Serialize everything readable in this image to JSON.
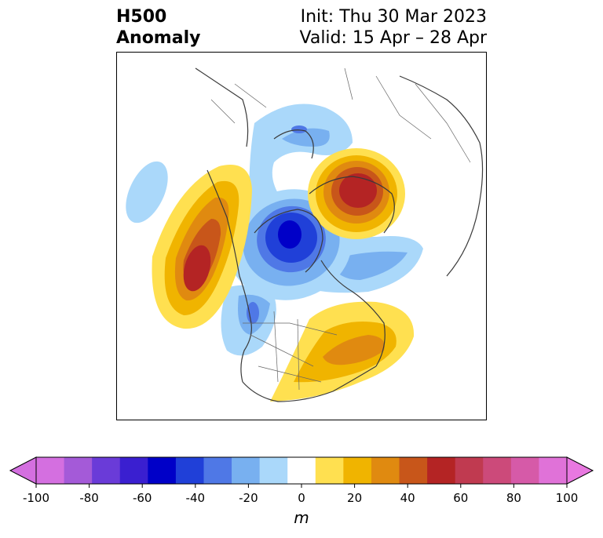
{
  "header": {
    "title_line1": "H500",
    "title_line2": "Anomaly",
    "init_text": "Init: Thu 30 Mar 2023",
    "valid_text": "Valid: 15 Apr – 28 Apr"
  },
  "colorbar": {
    "unit": "m",
    "ticks": [
      "-100",
      "-80",
      "-60",
      "-40",
      "-20",
      "0",
      "20",
      "40",
      "60",
      "80",
      "100"
    ],
    "colors": [
      "#d46fe0",
      "#a45ad8",
      "#6a3bd8",
      "#3a1fd0",
      "#0000c8",
      "#2040d8",
      "#4f78e6",
      "#78b0f0",
      "#aad8fa",
      "#ffffff",
      "#ffe050",
      "#f0b400",
      "#e08a10",
      "#c8561a",
      "#b42424",
      "#c03a50",
      "#cc4a7a",
      "#d65aa8",
      "#e072d8"
    ],
    "extend_min_color": "#d46fe0",
    "extend_max_color": "#e878e0"
  },
  "map": {
    "projection": "north-polar-stereographic",
    "anomalies": [
      {
        "name": "ridge-northeast-pacific",
        "peak_m": 60
      },
      {
        "name": "ridge-north-central-siberia",
        "peak_m": 60
      },
      {
        "name": "ridge-eastern-north-america",
        "peak_m": 50
      },
      {
        "name": "trough-hudson-bay-canada",
        "peak_m": -60
      },
      {
        "name": "trough-north-atlantic-arc",
        "peak_m": -20
      },
      {
        "name": "trough-western-us",
        "peak_m": -40
      },
      {
        "name": "trough-north-pacific",
        "peak_m": -20
      }
    ]
  }
}
